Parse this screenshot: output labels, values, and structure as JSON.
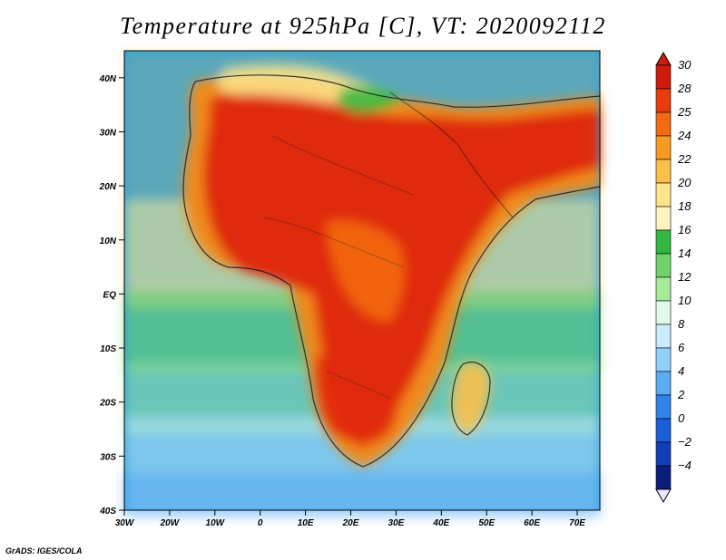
{
  "title": "Temperature at 925hPa [C], VT: 2020092112",
  "credit": "GrADS: IGES/COLA",
  "map": {
    "projection": "latlon",
    "lon_range": [
      -30,
      75
    ],
    "lat_range": [
      -40,
      45
    ],
    "lon_ticks": [
      "30W",
      "20W",
      "10W",
      "0",
      "10E",
      "20E",
      "30E",
      "40E",
      "50E",
      "60E",
      "70E"
    ],
    "lat_ticks": [
      "40N",
      "30N",
      "20N",
      "10N",
      "EQ",
      "10S",
      "20S",
      "30S",
      "40S"
    ],
    "field": "temperature_925hPa",
    "units": "C",
    "ocean_color": "#2aa0d8",
    "land_color": "#f08a1a",
    "hot_color": "#e02b10"
  },
  "colorbar": {
    "labels": [
      "30",
      "28",
      "25",
      "24",
      "22",
      "20",
      "18",
      "16",
      "14",
      "12",
      "10",
      "8",
      "6",
      "4",
      "2",
      "0",
      "−2",
      "−4"
    ],
    "colors": [
      "#d01a0a",
      "#e83c0c",
      "#f46a10",
      "#f89a20",
      "#fbc04a",
      "#fde58c",
      "#fff3bf",
      "#30b840",
      "#6fd36a",
      "#a6ea9a",
      "#e2fbe9",
      "#c8ebff",
      "#8fd2ff",
      "#5aaaf4",
      "#2f83e8",
      "#1a5fd9",
      "#123fb9",
      "#0a1d7a"
    ]
  }
}
